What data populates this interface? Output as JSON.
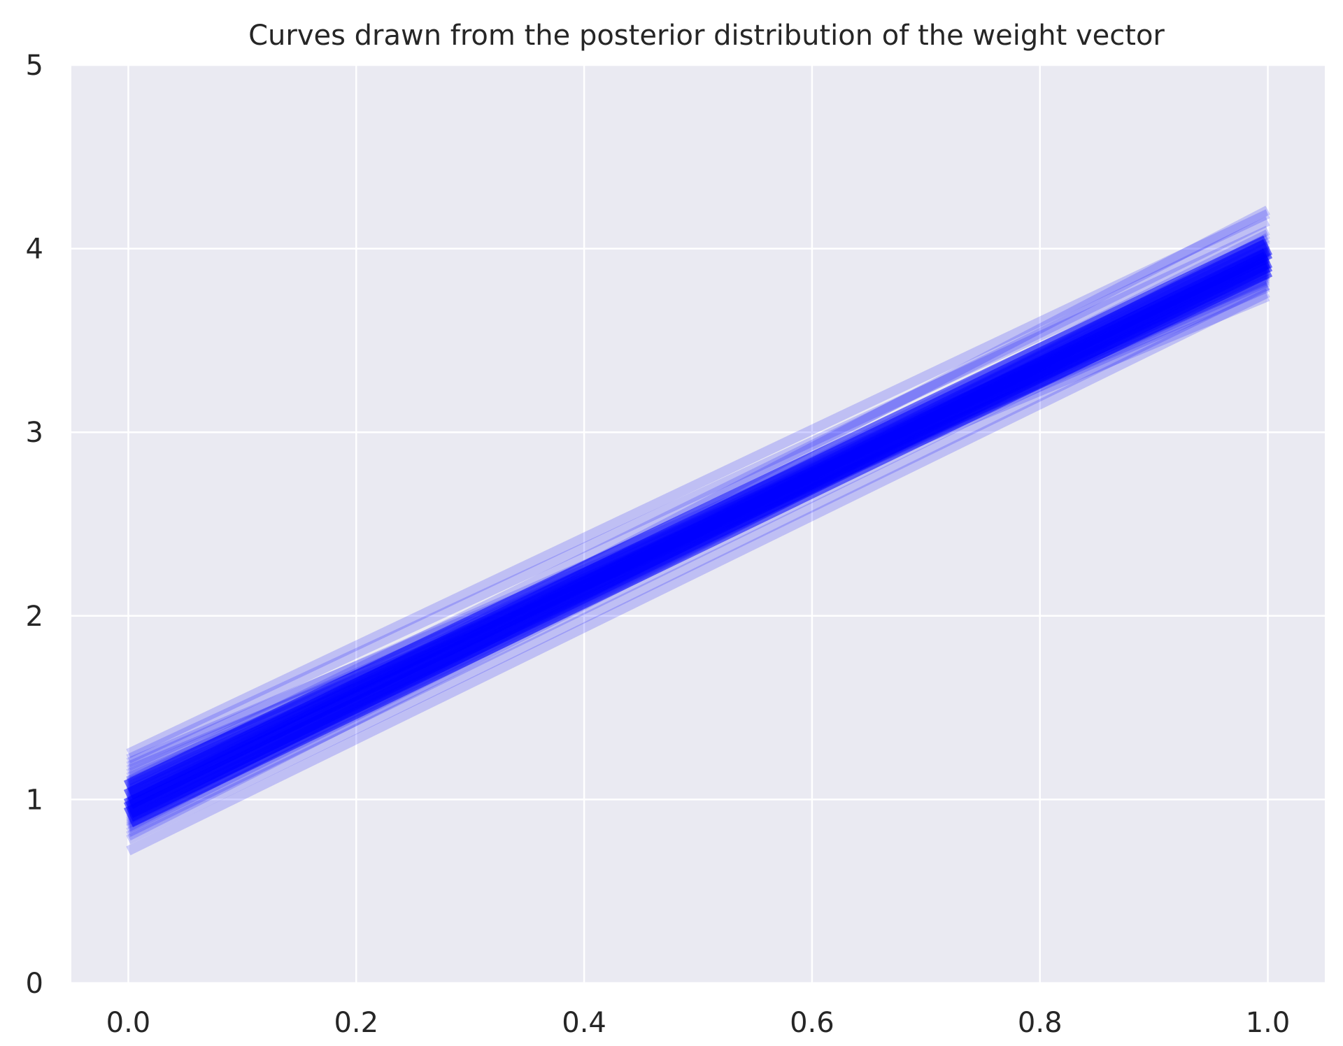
{
  "chart_data": {
    "type": "line",
    "title": "Curves drawn from the posterior distribution of the weight vector",
    "xlabel": "",
    "ylabel": "",
    "xlim": [
      -0.05,
      1.05
    ],
    "ylim": [
      0,
      5
    ],
    "x_ticks": [
      "0.0",
      "0.2",
      "0.4",
      "0.6",
      "0.8",
      "1.0"
    ],
    "y_ticks": [
      "0",
      "1",
      "2",
      "3",
      "4",
      "5"
    ],
    "grid": true,
    "x": [
      0.0,
      1.0
    ],
    "series_description": "Many sampled straight lines y = w0 + w1*x, each drawn semi-transparent",
    "series": [
      {
        "values": [
          0.72,
          3.76
        ]
      },
      {
        "values": [
          0.78,
          3.8
        ]
      },
      {
        "values": [
          0.8,
          3.95
        ]
      },
      {
        "values": [
          0.82,
          3.86
        ]
      },
      {
        "values": [
          0.84,
          3.92
        ]
      },
      {
        "values": [
          0.86,
          3.98
        ]
      },
      {
        "values": [
          0.87,
          3.9
        ]
      },
      {
        "values": [
          0.88,
          4.02
        ]
      },
      {
        "values": [
          0.89,
          3.94
        ]
      },
      {
        "values": [
          0.9,
          3.88
        ]
      },
      {
        "values": [
          0.91,
          3.97
        ]
      },
      {
        "values": [
          0.92,
          4.05
        ]
      },
      {
        "values": [
          0.93,
          3.92
        ]
      },
      {
        "values": [
          0.94,
          3.99
        ]
      },
      {
        "values": [
          0.95,
          3.85
        ]
      },
      {
        "values": [
          0.96,
          4.03
        ]
      },
      {
        "values": [
          0.97,
          3.95
        ]
      },
      {
        "values": [
          0.98,
          4.08
        ]
      },
      {
        "values": [
          0.99,
          3.91
        ]
      },
      {
        "values": [
          1.0,
          3.98
        ]
      },
      {
        "values": [
          1.01,
          3.84
        ]
      },
      {
        "values": [
          1.02,
          4.01
        ]
      },
      {
        "values": [
          1.03,
          3.93
        ]
      },
      {
        "values": [
          1.04,
          3.87
        ]
      },
      {
        "values": [
          1.05,
          3.96
        ]
      },
      {
        "values": [
          1.06,
          3.82
        ]
      },
      {
        "values": [
          1.07,
          3.9
        ]
      },
      {
        "values": [
          1.08,
          3.79
        ]
      },
      {
        "values": [
          1.09,
          3.95
        ]
      },
      {
        "values": [
          1.1,
          3.86
        ]
      },
      {
        "values": [
          1.12,
          3.8
        ]
      },
      {
        "values": [
          1.14,
          3.88
        ]
      },
      {
        "values": [
          1.16,
          3.74
        ]
      },
      {
        "values": [
          1.18,
          3.92
        ]
      },
      {
        "values": [
          1.22,
          4.1
        ]
      },
      {
        "values": [
          1.25,
          4.19
        ]
      },
      {
        "values": [
          1.1,
          4.15
        ]
      },
      {
        "values": [
          0.98,
          4.21
        ]
      },
      {
        "values": [
          1.2,
          3.83
        ]
      },
      {
        "values": [
          0.85,
          4.06
        ]
      }
    ],
    "line_color": "#0000ff"
  }
}
